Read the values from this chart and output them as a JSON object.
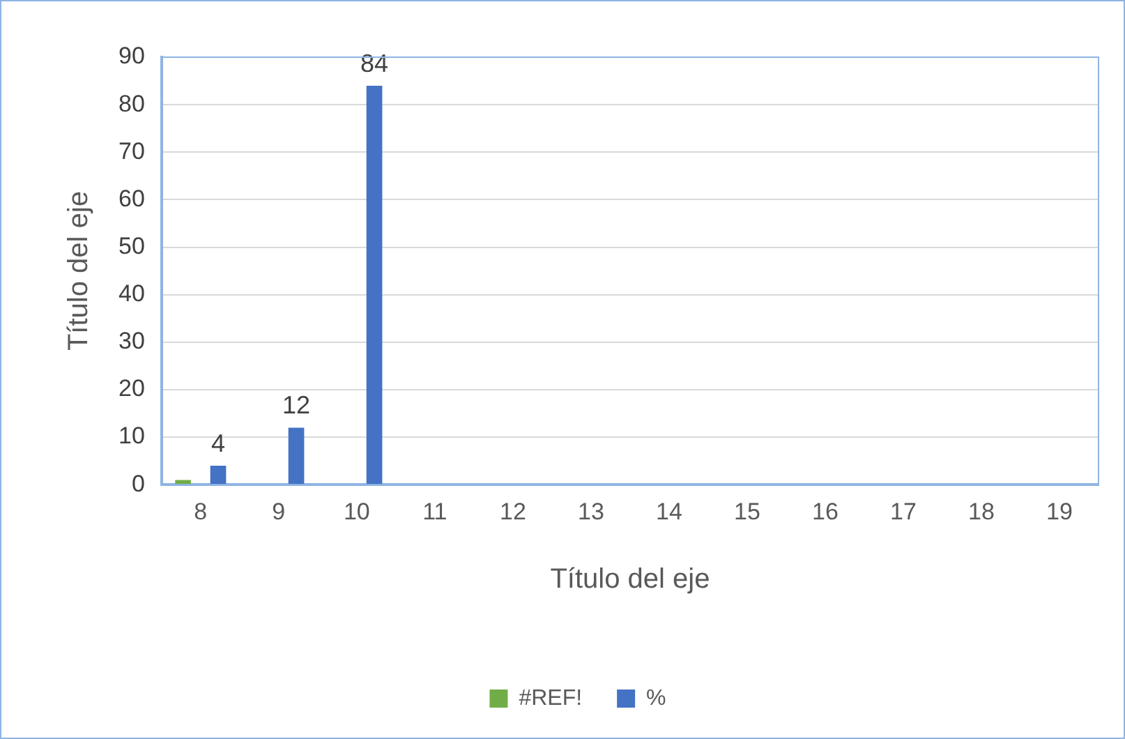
{
  "chart_data": {
    "type": "bar",
    "xlabel": "Título del eje",
    "ylabel": "Título del eje",
    "categories": [
      "8",
      "9",
      "10",
      "11",
      "12",
      "13",
      "14",
      "15",
      "16",
      "17",
      "18",
      "19"
    ],
    "series": [
      {
        "name": "#REF!",
        "color": "#70ad47",
        "values": [
          1,
          null,
          null,
          null,
          null,
          null,
          null,
          null,
          null,
          null,
          null,
          null
        ]
      },
      {
        "name": "%",
        "color": "#4472c4",
        "values": [
          4,
          12,
          84,
          null,
          null,
          null,
          null,
          null,
          null,
          null,
          null,
          null
        ],
        "value_labels": [
          "4",
          "12",
          "84",
          null,
          null,
          null,
          null,
          null,
          null,
          null,
          null,
          null
        ]
      }
    ],
    "ylim": [
      0,
      90
    ],
    "yticks": [
      0,
      10,
      20,
      30,
      40,
      50,
      60,
      70,
      80,
      90
    ],
    "grid": "y",
    "legend": "bottom"
  }
}
